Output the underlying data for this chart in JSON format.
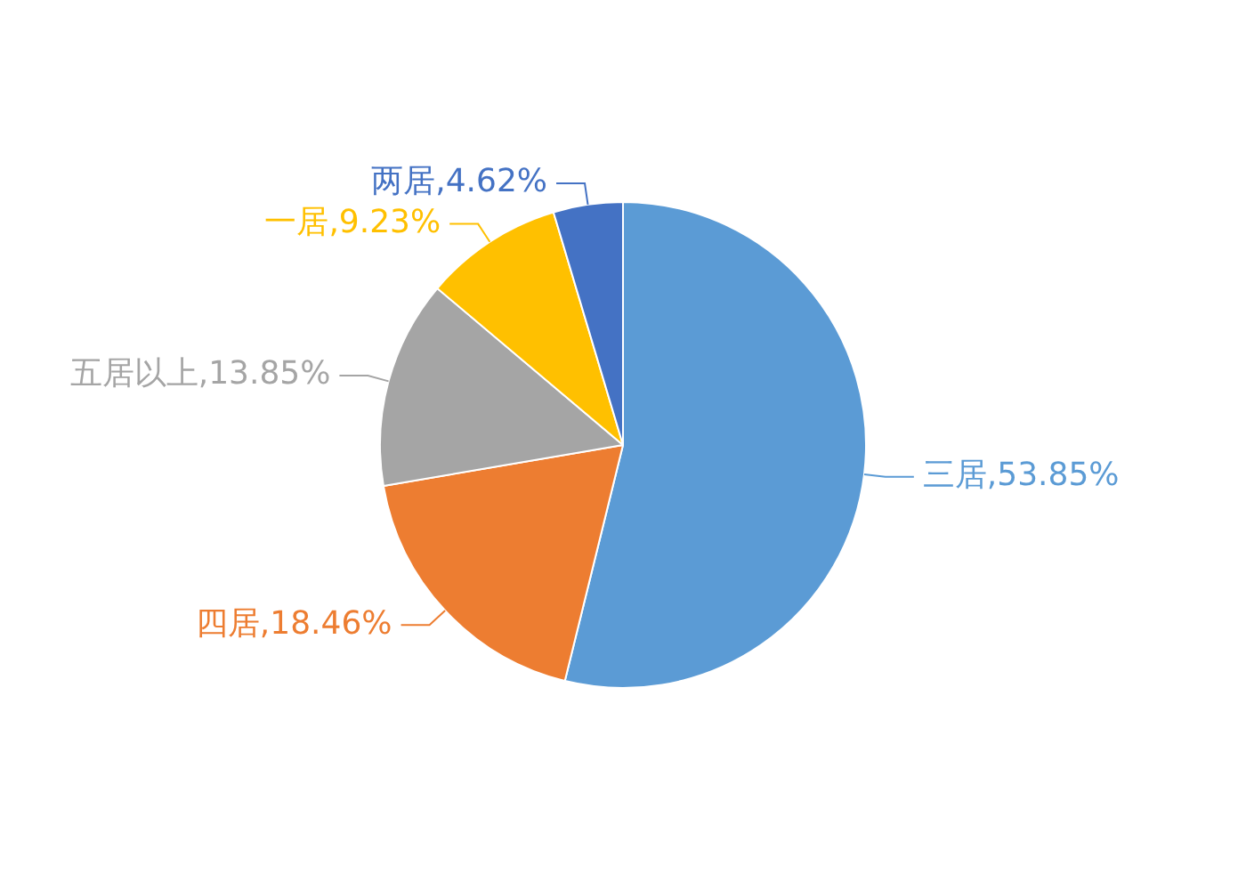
{
  "chart_data": {
    "type": "pie",
    "categories": [
      "三居",
      "四居",
      "五居以上",
      "一居",
      "两居"
    ],
    "values": [
      53.85,
      18.46,
      13.85,
      9.23,
      4.62
    ],
    "colors": [
      "#5b9bd5",
      "#ed7d31",
      "#a5a5a5",
      "#ffc000",
      "#4472c4"
    ],
    "value_labels": [
      "53.85%",
      "18.46%",
      "13.85%",
      "9.23%",
      "4.62%"
    ],
    "legend": false
  }
}
